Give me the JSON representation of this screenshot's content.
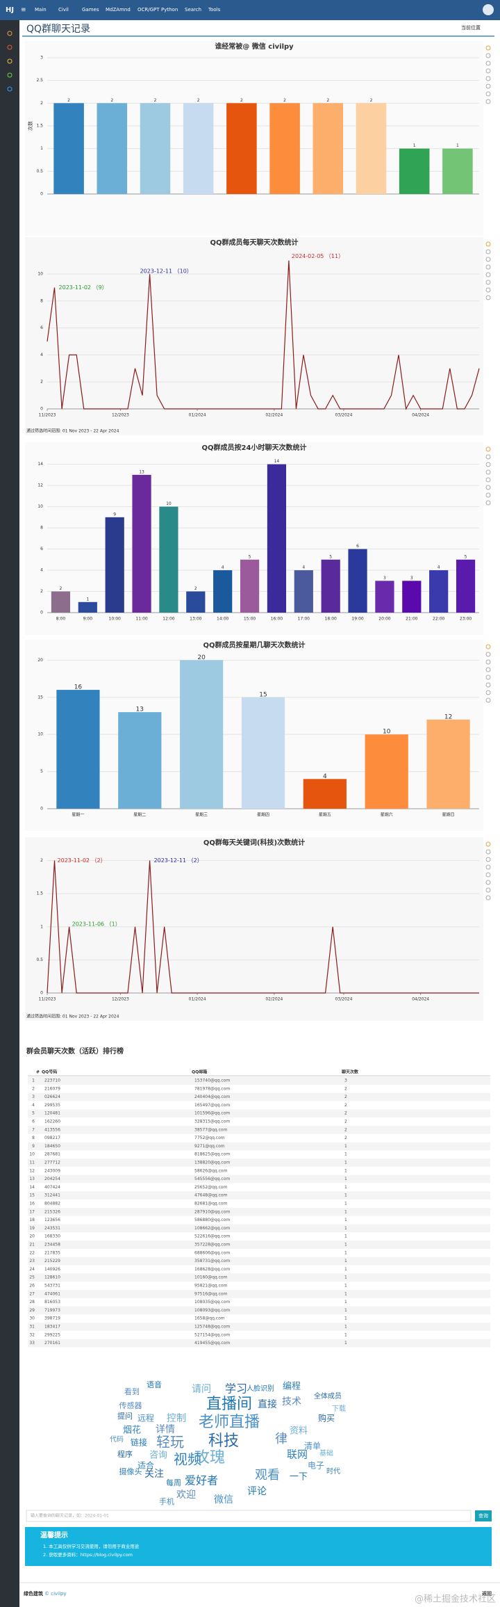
{
  "nav": {
    "brand": "HJ",
    "items": [
      "Main",
      "Civil",
      "Games",
      "MdZAmnd",
      "OCR/GPT",
      "Python",
      "Search",
      "Tools"
    ]
  },
  "page": {
    "title": "QQ群聊天记录",
    "crumb": "当前位置"
  },
  "chart_data": [
    {
      "type": "bar",
      "title": "谁经常被@ 微信 civilpy",
      "ylabel": "次数",
      "categories": [
        null,
        null,
        null,
        null,
        null,
        null,
        null,
        null,
        null,
        null
      ],
      "values": [
        2,
        2,
        2,
        2,
        2,
        2,
        2,
        2,
        1,
        1
      ],
      "colors": [
        "#3182bd",
        "#6baed6",
        "#9ecae1",
        "#c6dbef",
        "#e6550d",
        "#fd8d3c",
        "#fdae6b",
        "#fdd0a2",
        "#31a354",
        "#74c476"
      ],
      "ylim": [
        0,
        3
      ],
      "yticks": [
        0,
        0.5,
        1,
        1.5,
        2,
        2.5,
        3
      ],
      "grid": true
    },
    {
      "type": "line",
      "title": "QQ群成员每天聊天次数统计",
      "values": [
        5,
        9,
        0,
        4,
        4,
        0,
        0,
        0,
        0,
        0,
        0,
        0,
        3,
        1,
        10,
        1,
        0,
        0,
        0,
        0,
        0,
        0,
        0,
        0,
        0,
        0,
        0,
        0,
        0,
        0,
        0,
        0,
        0,
        11,
        0,
        4,
        1,
        0,
        0,
        1,
        0,
        0,
        0,
        0,
        0,
        0,
        0,
        1,
        4,
        0,
        1,
        0,
        0,
        0,
        0,
        3,
        0,
        0,
        1,
        3
      ],
      "color": "#8b1a1a",
      "xlim": [
        0,
        59
      ],
      "xticks": [
        {
          "value": 0,
          "label": "11/2023"
        },
        {
          "value": 10,
          "label": "12/2023"
        },
        {
          "value": 20.5,
          "label": "01/2024"
        },
        {
          "value": 31,
          "label": "02/2024"
        },
        {
          "value": 40.5,
          "label": "03/2024"
        },
        {
          "value": 51,
          "label": "04/2024"
        }
      ],
      "ylim": [
        0,
        11.5
      ],
      "yticks": [
        0,
        2,
        4,
        6,
        8,
        10
      ],
      "grid": true,
      "annotations": [
        {
          "text": "2023-11-02 （9）",
          "color": "#2a9a2a"
        },
        {
          "text": "2023-12-11 （10）",
          "color": "#2a2aaa"
        },
        {
          "text": "2024-02-05 （11）",
          "color": "#d62728"
        }
      ],
      "note": "通过筛选时间范围: 01 Nov 2023 - 22 Apr 2024"
    },
    {
      "type": "bar",
      "title": "QQ群成员按24小时聊天次数统计",
      "categories": [
        "8:00",
        "9:00",
        "10:00",
        "11:00",
        "12:00",
        "13:00",
        "14:00",
        "15:00",
        "16:00",
        "17:00",
        "18:00",
        "19:00",
        "20:00",
        "21:00",
        "22:00",
        "23:00"
      ],
      "values": [
        2,
        1,
        9,
        13,
        10,
        2,
        4,
        5,
        14,
        4,
        5,
        6,
        3,
        3,
        4,
        5
      ],
      "colors": [
        "#8c6d8c",
        "#2b4c9c",
        "#2a3a8c",
        "#6a2a9c",
        "#2a8a8a",
        "#2a4a9c",
        "#1a5a9c",
        "#9a5a9c",
        "#3a2a9c",
        "#4a5a9c",
        "#5a2a9c",
        "#2a3a9c",
        "#6a2aac",
        "#5a0aac",
        "#3a3aac",
        "#5a1aac"
      ],
      "ylim": [
        0,
        14.5
      ],
      "yticks": [
        0,
        2,
        4,
        6,
        8,
        10,
        12,
        14
      ],
      "grid": true
    },
    {
      "type": "bar",
      "title": "QQ群成员按星期几聊天次数统计",
      "categories": [
        "星期一",
        "星期二",
        "星期三",
        "星期四",
        "星期五",
        "星期六",
        "星期日"
      ],
      "values": [
        16,
        13,
        20,
        15,
        4,
        10,
        12
      ],
      "colors": [
        "#3182bd",
        "#6baed6",
        "#9ecae1",
        "#c6dbef",
        "#e6550d",
        "#fd8d3c",
        "#fdae6b"
      ],
      "ylim": [
        0,
        20.5
      ],
      "yticks": [
        0,
        5,
        10,
        15,
        20
      ],
      "grid": true
    },
    {
      "type": "line",
      "title": "QQ群每天关键词(科技)次数统计",
      "values": [
        0,
        2,
        0,
        1,
        0,
        0,
        0,
        0,
        0,
        0,
        0,
        0,
        1,
        0,
        2,
        0,
        1,
        0,
        0,
        0,
        0,
        0,
        0,
        0,
        0,
        0,
        0,
        0,
        0,
        0,
        0,
        0,
        0,
        0,
        0,
        0,
        0,
        0,
        0,
        1,
        0,
        0,
        0,
        0,
        0,
        0,
        0,
        0,
        0,
        0,
        0,
        0,
        0,
        0,
        0,
        0,
        0,
        0,
        0,
        0
      ],
      "color": "#8b1a1a",
      "xlim": [
        0,
        59
      ],
      "xticks": [
        {
          "value": 0,
          "label": "11/2023"
        },
        {
          "value": 10,
          "label": "12/2023"
        },
        {
          "value": 20.5,
          "label": "01/2024"
        },
        {
          "value": 31,
          "label": "02/2024"
        },
        {
          "value": 40.5,
          "label": "03/2024"
        },
        {
          "value": 51,
          "label": "04/2024"
        }
      ],
      "ylim": [
        0,
        2.1
      ],
      "yticks": [
        0,
        0.5,
        1,
        1.5,
        2
      ],
      "grid": true,
      "annotations": [
        {
          "text": "2023-11-02 （2）",
          "color": "#d62728"
        },
        {
          "text": "2023-12-11 （2）",
          "color": "#2a2aaa"
        },
        {
          "text": "2023-11-06 （1）",
          "color": "#2a9a2a"
        }
      ],
      "note": "通过筛选时间范围: 01 Nov 2023 - 22 Apr 2024"
    }
  ],
  "table": {
    "title": "群会员聊天次数（活跃）排行榜",
    "columns": [
      "#",
      "QQ号码",
      "QQ邮箱",
      "聊天次数"
    ],
    "rows": [
      [
        "1",
        "223710",
        "153740@qq.com",
        "3"
      ],
      [
        "2",
        "216079",
        "781978@qq.com",
        "2"
      ],
      [
        "3",
        "026624",
        "240404@qq.com",
        "2"
      ],
      [
        "4",
        "299535",
        "165497@qq.com",
        "2"
      ],
      [
        "5",
        "120481",
        "101596@qq.com",
        "2"
      ],
      [
        "6",
        "162260",
        "328315@qq.com",
        "2"
      ],
      [
        "7",
        "413556",
        "38577@qq.com",
        "2"
      ],
      [
        "8",
        "098217",
        "7752@qq.com",
        "2"
      ],
      [
        "9",
        "184650",
        "9271@qq.com",
        "1"
      ],
      [
        "10",
        "287681",
        "818625@qq.com",
        "1"
      ],
      [
        "11",
        "277712",
        "138820@qq.com",
        "1"
      ],
      [
        "12",
        "243009",
        "58626@qq.com",
        "1"
      ],
      [
        "13",
        "204254",
        "545556@qq.com",
        "1"
      ],
      [
        "14",
        "407424",
        "25652@qq.com",
        "1"
      ],
      [
        "15",
        "312441",
        "47648@qq.com",
        "1"
      ],
      [
        "16",
        "804882",
        "82681@qq.com",
        "1"
      ],
      [
        "17",
        "215326",
        "287910@qq.com",
        "1"
      ],
      [
        "18",
        "123656",
        "586880@qq.com",
        "1"
      ],
      [
        "19",
        "243531",
        "108662@qq.com",
        "1"
      ],
      [
        "20",
        "168330",
        "522616@qq.com",
        "1"
      ],
      [
        "21",
        "234458",
        "357228@qq.com",
        "1"
      ],
      [
        "22",
        "217835",
        "688606@qq.com",
        "1"
      ],
      [
        "23",
        "215229",
        "358731@qq.com",
        "1"
      ],
      [
        "24",
        "140926",
        "168628@qq.com",
        "1"
      ],
      [
        "25",
        "128610",
        "10160@qq.com",
        "1"
      ],
      [
        "26",
        "543731",
        "95821@qq.com",
        "1"
      ],
      [
        "27",
        "474061",
        "97516@qq.com",
        "1"
      ],
      [
        "28",
        "816053",
        "108035@qq.com",
        "1"
      ],
      [
        "29",
        "719973",
        "108093@qq.com",
        "1"
      ],
      [
        "30",
        "398719",
        "1658@qq.com",
        "1"
      ],
      [
        "31",
        "183417",
        "125748@qq.com",
        "1"
      ],
      [
        "32",
        "299225",
        "527154@qq.com",
        "1"
      ],
      [
        "33",
        "270161",
        "419455@qq.com",
        "1"
      ]
    ]
  },
  "wordcloud": {
    "words": [
      "直播间",
      "老师直播",
      "科技",
      "玫瑰",
      "视频",
      "轻玩",
      "爱好者",
      "观看",
      "学习",
      "请问",
      "编程",
      "技术",
      "评论",
      "微信",
      "关注",
      "资料",
      "联网",
      "律",
      "一下",
      "电子",
      "直接",
      "控制",
      "烟花",
      "详情",
      "链接",
      "远程",
      "程序",
      "咨询",
      "摄像头",
      "欢迎",
      "每周",
      "清单",
      "购买",
      "下载",
      "适合",
      "传感器",
      "人脸识别",
      "代码",
      "全体成员",
      "基础",
      "时代",
      "看到",
      "语音",
      "手机",
      "提问"
    ],
    "colors": [
      "#1f77b4",
      "#4a90c8",
      "#2a6aa8",
      "#6baed6",
      "#3182bd",
      "#5a8ac0"
    ]
  },
  "search": {
    "placeholder": "输入要查询的聊天记录，如：2024-01-01",
    "button": "查询"
  },
  "notice": {
    "title": "温馨提示",
    "items": [
      "1. 本工具仅供学习交流使用，请勿用于商业用途",
      "2. 获取更多资料：https://blog.civilpy.com"
    ]
  },
  "footer": {
    "left": "绿色建筑",
    "right": "© civilpy",
    "back": "返回",
    "watermark": "@稀土掘金技术社区"
  }
}
